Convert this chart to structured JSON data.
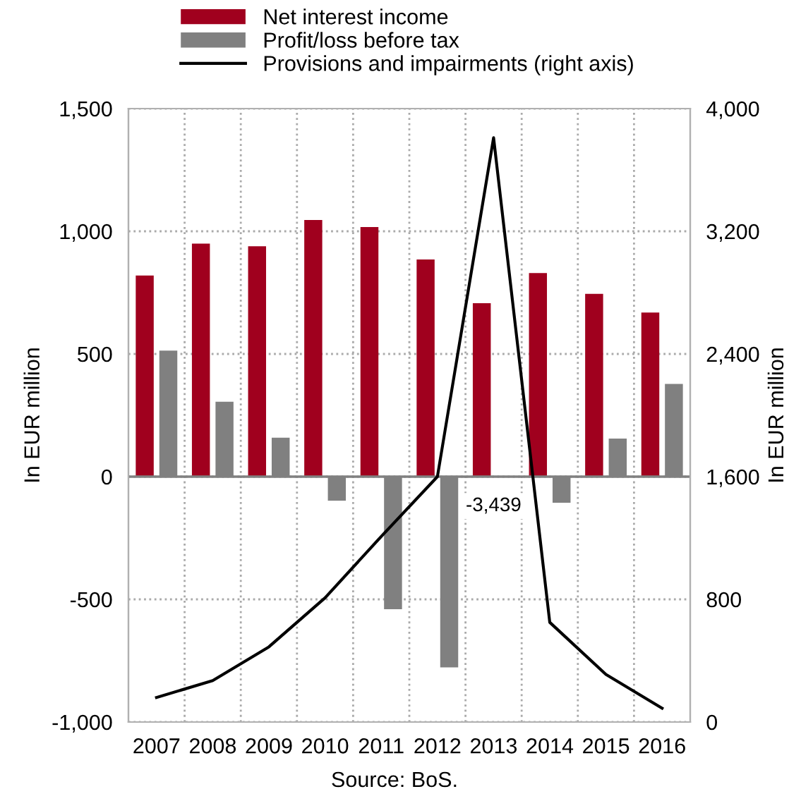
{
  "chart_data": {
    "type": "bar",
    "categories": [
      "2007",
      "2008",
      "2009",
      "2010",
      "2011",
      "2012",
      "2013",
      "2014",
      "2015",
      "2016"
    ],
    "series": [
      {
        "name": "Net interest income",
        "color": "#a0001e",
        "values": [
          820,
          950,
          939,
          1046,
          1017,
          885,
          707,
          830,
          745,
          669
        ]
      },
      {
        "name": "Profit/loss before tax",
        "color": "#808080",
        "values": [
          514,
          305,
          159,
          -98,
          -540,
          -777,
          null,
          -106,
          155,
          378
        ],
        "value_labels": [
          null,
          null,
          null,
          null,
          null,
          null,
          "-3,439",
          null,
          null,
          null
        ]
      },
      {
        "name": "Provisions and impairments (right axis)",
        "type": "line",
        "axis": "y2",
        "color": "#000000",
        "values": [
          160,
          270,
          490,
          810,
          1210,
          1600,
          3810,
          650,
          310,
          90
        ]
      }
    ],
    "ylabel": "In EUR million",
    "y2label": "In EUR million",
    "ylim": [
      -1000,
      1500
    ],
    "yticks": [
      {
        "value": -1000,
        "label": "-1,000"
      },
      -500,
      0,
      500,
      {
        "value": 1000,
        "label": "1,000"
      },
      {
        "value": 1500,
        "label": "1,500"
      }
    ],
    "y2lim": [
      0,
      4000
    ],
    "y2ticks": [
      0,
      800,
      {
        "value": 1600,
        "label": "1,600"
      },
      {
        "value": 2400,
        "label": "2,400"
      },
      {
        "value": 3200,
        "label": "3,200"
      },
      {
        "value": 4000,
        "label": "4,000"
      }
    ],
    "grid": true,
    "legend": "top",
    "marker": "none",
    "line_style": "solid",
    "annotations": [
      "Source: BoS."
    ]
  }
}
